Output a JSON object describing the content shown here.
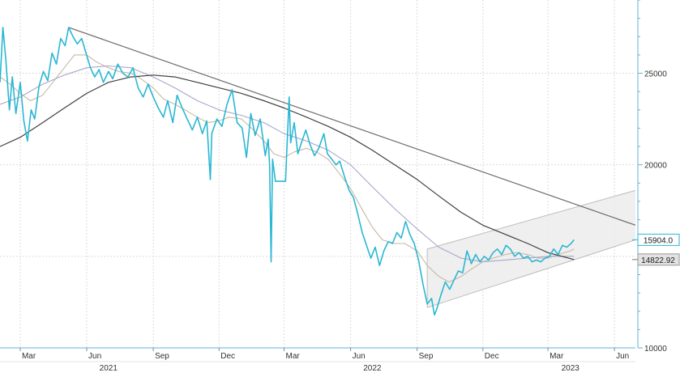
{
  "chart_data": {
    "type": "line",
    "title": "",
    "xlabel": "",
    "ylabel": "",
    "ylim": [
      10000,
      29000
    ],
    "x_range": [
      "2021-02-01",
      "2023-06-30"
    ],
    "grid": true,
    "y_axis_side": "right",
    "y_ticks": [
      {
        "value": 10000,
        "label": "10000"
      },
      {
        "value": 15000,
        "label": ""
      },
      {
        "value": 20000,
        "label": "20000"
      },
      {
        "value": 25000,
        "label": "25000"
      }
    ],
    "x_month_ticks": [
      {
        "date": "2021-03-01",
        "label": "Mar"
      },
      {
        "date": "2021-06-01",
        "label": "Jun"
      },
      {
        "date": "2021-09-01",
        "label": "Sep"
      },
      {
        "date": "2021-12-01",
        "label": "Dec"
      },
      {
        "date": "2022-03-01",
        "label": "Mar"
      },
      {
        "date": "2022-06-01",
        "label": "Jun"
      },
      {
        "date": "2022-09-01",
        "label": "Sep"
      },
      {
        "date": "2022-12-01",
        "label": "Dec"
      },
      {
        "date": "2023-03-01",
        "label": "Mar"
      },
      {
        "date": "2023-06-01",
        "label": "Jun"
      }
    ],
    "x_year_labels": [
      {
        "date": "2021-07-01",
        "label": "2021"
      },
      {
        "date": "2022-07-01",
        "label": "2022"
      },
      {
        "date": "2023-04-01",
        "label": "2023"
      }
    ],
    "last_value_badges": [
      {
        "value": 15904.0,
        "label": "15904.0",
        "style": "outline-blue"
      },
      {
        "value": 14822.92,
        "label": "14822.92",
        "style": "filled-gray"
      }
    ],
    "colors": {
      "price": "#2ab7d3",
      "ma_short": "#c9b8a3",
      "ma_mid": "#a9a7c9",
      "ma_long": "#3f3f3f",
      "trendline": "#6b6b6b",
      "channel_fill": "#ececec",
      "channel_line": "#bdbdbd",
      "grid": "#dcdcdc",
      "axis": "#5cb6d6"
    },
    "series": [
      {
        "role": "price",
        "points": [
          [
            "2021-02-01",
            24500
          ],
          [
            "2021-02-05",
            27500
          ],
          [
            "2021-02-09",
            25800
          ],
          [
            "2021-02-14",
            23000
          ],
          [
            "2021-02-18",
            24800
          ],
          [
            "2021-02-23",
            22800
          ],
          [
            "2021-03-01",
            24500
          ],
          [
            "2021-03-06",
            22400
          ],
          [
            "2021-03-11",
            21300
          ],
          [
            "2021-03-16",
            23000
          ],
          [
            "2021-03-21",
            22500
          ],
          [
            "2021-03-27",
            24300
          ],
          [
            "2021-04-02",
            25100
          ],
          [
            "2021-04-08",
            24600
          ],
          [
            "2021-04-14",
            26100
          ],
          [
            "2021-04-20",
            25500
          ],
          [
            "2021-04-26",
            26900
          ],
          [
            "2021-05-02",
            26500
          ],
          [
            "2021-05-07",
            27500
          ],
          [
            "2021-05-13",
            27000
          ],
          [
            "2021-05-19",
            26600
          ],
          [
            "2021-05-25",
            26900
          ],
          [
            "2021-05-31",
            26100
          ],
          [
            "2021-06-06",
            25300
          ],
          [
            "2021-06-12",
            24800
          ],
          [
            "2021-06-18",
            25200
          ],
          [
            "2021-06-24",
            24500
          ],
          [
            "2021-07-01",
            25100
          ],
          [
            "2021-07-07",
            24700
          ],
          [
            "2021-07-14",
            25500
          ],
          [
            "2021-07-21",
            25000
          ],
          [
            "2021-07-28",
            24800
          ],
          [
            "2021-08-04",
            25300
          ],
          [
            "2021-08-11",
            24200
          ],
          [
            "2021-08-18",
            23700
          ],
          [
            "2021-08-25",
            24400
          ],
          [
            "2021-09-01",
            23700
          ],
          [
            "2021-09-08",
            23100
          ],
          [
            "2021-09-15",
            22600
          ],
          [
            "2021-09-21",
            23500
          ],
          [
            "2021-09-28",
            22300
          ],
          [
            "2021-10-04",
            23800
          ],
          [
            "2021-10-11",
            23100
          ],
          [
            "2021-10-18",
            22500
          ],
          [
            "2021-10-25",
            21900
          ],
          [
            "2021-11-01",
            22600
          ],
          [
            "2021-11-08",
            21700
          ],
          [
            "2021-11-14",
            22400
          ],
          [
            "2021-11-19",
            19200
          ],
          [
            "2021-11-21",
            21700
          ],
          [
            "2021-11-28",
            22500
          ],
          [
            "2021-12-05",
            22100
          ],
          [
            "2021-12-12",
            23300
          ],
          [
            "2021-12-19",
            24100
          ],
          [
            "2021-12-26",
            22300
          ],
          [
            "2022-01-02",
            22000
          ],
          [
            "2022-01-08",
            20400
          ],
          [
            "2022-01-14",
            22800
          ],
          [
            "2022-01-20",
            21600
          ],
          [
            "2022-01-27",
            22500
          ],
          [
            "2022-02-03",
            20500
          ],
          [
            "2022-02-07",
            21400
          ],
          [
            "2022-02-09",
            19900
          ],
          [
            "2022-02-11",
            14700
          ],
          [
            "2022-02-13",
            20300
          ],
          [
            "2022-02-17",
            19100
          ],
          [
            "2022-02-22",
            19100
          ],
          [
            "2022-02-26",
            19100
          ],
          [
            "2022-03-03",
            19100
          ],
          [
            "2022-03-05",
            21000
          ],
          [
            "2022-03-08",
            23700
          ],
          [
            "2022-03-10",
            21200
          ],
          [
            "2022-03-15",
            22300
          ],
          [
            "2022-03-20",
            20600
          ],
          [
            "2022-03-25",
            21200
          ],
          [
            "2022-03-31",
            21900
          ],
          [
            "2022-04-06",
            21100
          ],
          [
            "2022-04-12",
            20500
          ],
          [
            "2022-04-18",
            20900
          ],
          [
            "2022-04-25",
            21700
          ],
          [
            "2022-04-30",
            20600
          ],
          [
            "2022-05-06",
            20300
          ],
          [
            "2022-05-12",
            20000
          ],
          [
            "2022-05-17",
            20200
          ],
          [
            "2022-05-24",
            19300
          ],
          [
            "2022-05-30",
            18600
          ],
          [
            "2022-06-05",
            18200
          ],
          [
            "2022-06-11",
            17300
          ],
          [
            "2022-06-17",
            16300
          ],
          [
            "2022-06-23",
            15600
          ],
          [
            "2022-06-29",
            14900
          ],
          [
            "2022-07-05",
            15500
          ],
          [
            "2022-07-11",
            14500
          ],
          [
            "2022-07-17",
            15300
          ],
          [
            "2022-07-23",
            15800
          ],
          [
            "2022-07-29",
            15700
          ],
          [
            "2022-08-04",
            16300
          ],
          [
            "2022-08-10",
            16000
          ],
          [
            "2022-08-16",
            16900
          ],
          [
            "2022-08-22",
            16200
          ],
          [
            "2022-08-28",
            15700
          ],
          [
            "2022-09-03",
            14800
          ],
          [
            "2022-09-09",
            13500
          ],
          [
            "2022-09-15",
            12400
          ],
          [
            "2022-09-21",
            12700
          ],
          [
            "2022-09-25",
            11800
          ],
          [
            "2022-09-28",
            12100
          ],
          [
            "2022-10-04",
            12900
          ],
          [
            "2022-10-10",
            13600
          ],
          [
            "2022-10-16",
            13200
          ],
          [
            "2022-10-22",
            13700
          ],
          [
            "2022-10-28",
            14200
          ],
          [
            "2022-11-03",
            14100
          ],
          [
            "2022-11-09",
            15300
          ],
          [
            "2022-11-15",
            14600
          ],
          [
            "2022-11-21",
            15100
          ],
          [
            "2022-11-27",
            14700
          ],
          [
            "2022-12-03",
            15000
          ],
          [
            "2022-12-09",
            14800
          ],
          [
            "2022-12-15",
            15200
          ],
          [
            "2022-12-21",
            15400
          ],
          [
            "2022-12-27",
            15100
          ],
          [
            "2023-01-02",
            15600
          ],
          [
            "2023-01-08",
            15400
          ],
          [
            "2023-01-14",
            15000
          ],
          [
            "2023-01-20",
            15200
          ],
          [
            "2023-01-26",
            14900
          ],
          [
            "2023-02-01",
            15000
          ],
          [
            "2023-02-07",
            14700
          ],
          [
            "2023-02-13",
            14800
          ],
          [
            "2023-02-19",
            14700
          ],
          [
            "2023-02-25",
            14900
          ],
          [
            "2023-03-03",
            15000
          ],
          [
            "2023-03-09",
            15400
          ],
          [
            "2023-03-15",
            15100
          ],
          [
            "2023-03-21",
            15600
          ],
          [
            "2023-03-27",
            15500
          ],
          [
            "2023-04-02",
            15700
          ],
          [
            "2023-04-06",
            15904
          ]
        ]
      },
      {
        "role": "ma_short",
        "points": [
          [
            "2021-02-01",
            24800
          ],
          [
            "2021-02-15",
            24400
          ],
          [
            "2021-03-01",
            23900
          ],
          [
            "2021-03-15",
            23500
          ],
          [
            "2021-04-01",
            23800
          ],
          [
            "2021-04-15",
            24500
          ],
          [
            "2021-05-01",
            25300
          ],
          [
            "2021-05-15",
            26000
          ],
          [
            "2021-06-01",
            26000
          ],
          [
            "2021-06-15",
            25600
          ],
          [
            "2021-07-01",
            25300
          ],
          [
            "2021-07-15",
            25100
          ],
          [
            "2021-08-01",
            25000
          ],
          [
            "2021-08-15",
            24700
          ],
          [
            "2021-09-01",
            24200
          ],
          [
            "2021-09-15",
            23600
          ],
          [
            "2021-10-01",
            23300
          ],
          [
            "2021-10-15",
            23000
          ],
          [
            "2021-11-01",
            22600
          ],
          [
            "2021-11-15",
            22300
          ],
          [
            "2021-12-01",
            22400
          ],
          [
            "2021-12-15",
            22600
          ],
          [
            "2022-01-01",
            22500
          ],
          [
            "2022-01-15",
            22000
          ],
          [
            "2022-02-01",
            21300
          ],
          [
            "2022-02-15",
            20600
          ],
          [
            "2022-03-01",
            20400
          ],
          [
            "2022-03-15",
            20700
          ],
          [
            "2022-04-01",
            20900
          ],
          [
            "2022-04-15",
            20700
          ],
          [
            "2022-05-01",
            20300
          ],
          [
            "2022-05-15",
            19600
          ],
          [
            "2022-06-01",
            18700
          ],
          [
            "2022-06-15",
            17700
          ],
          [
            "2022-07-01",
            16600
          ],
          [
            "2022-07-15",
            15900
          ],
          [
            "2022-08-01",
            15700
          ],
          [
            "2022-08-15",
            15700
          ],
          [
            "2022-09-01",
            15300
          ],
          [
            "2022-09-15",
            14500
          ],
          [
            "2022-10-01",
            13900
          ],
          [
            "2022-10-15",
            13600
          ],
          [
            "2022-11-01",
            13900
          ],
          [
            "2022-11-15",
            14300
          ],
          [
            "2022-12-01",
            14700
          ],
          [
            "2022-12-15",
            14900
          ],
          [
            "2023-01-01",
            15100
          ],
          [
            "2023-01-15",
            15200
          ],
          [
            "2023-02-01",
            15100
          ],
          [
            "2023-02-15",
            14900
          ],
          [
            "2023-03-01",
            14900
          ],
          [
            "2023-03-15",
            15100
          ],
          [
            "2023-04-01",
            15300
          ],
          [
            "2023-04-06",
            15400
          ]
        ]
      },
      {
        "role": "ma_mid",
        "points": [
          [
            "2021-02-01",
            23300
          ],
          [
            "2021-03-01",
            23700
          ],
          [
            "2021-04-01",
            24400
          ],
          [
            "2021-05-01",
            24900
          ],
          [
            "2021-06-01",
            25300
          ],
          [
            "2021-07-01",
            25400
          ],
          [
            "2021-08-01",
            25300
          ],
          [
            "2021-09-01",
            24800
          ],
          [
            "2021-10-01",
            24200
          ],
          [
            "2021-11-01",
            23500
          ],
          [
            "2021-12-01",
            23000
          ],
          [
            "2022-01-01",
            22700
          ],
          [
            "2022-02-01",
            22300
          ],
          [
            "2022-03-01",
            21700
          ],
          [
            "2022-04-01",
            21300
          ],
          [
            "2022-05-01",
            20800
          ],
          [
            "2022-06-01",
            20000
          ],
          [
            "2022-07-01",
            18800
          ],
          [
            "2022-08-01",
            17600
          ],
          [
            "2022-09-01",
            16500
          ],
          [
            "2022-10-01",
            15500
          ],
          [
            "2022-11-01",
            14900
          ],
          [
            "2022-12-01",
            14700
          ],
          [
            "2023-01-01",
            14800
          ],
          [
            "2023-02-01",
            14900
          ],
          [
            "2023-03-01",
            15000
          ],
          [
            "2023-04-06",
            15000
          ]
        ]
      },
      {
        "role": "ma_long",
        "points": [
          [
            "2021-02-01",
            21000
          ],
          [
            "2021-03-01",
            21500
          ],
          [
            "2021-04-01",
            22300
          ],
          [
            "2021-05-01",
            23100
          ],
          [
            "2021-06-01",
            23900
          ],
          [
            "2021-07-01",
            24500
          ],
          [
            "2021-08-01",
            24800
          ],
          [
            "2021-09-01",
            24900
          ],
          [
            "2021-10-01",
            24800
          ],
          [
            "2021-11-01",
            24500
          ],
          [
            "2021-12-01",
            24200
          ],
          [
            "2022-01-01",
            23900
          ],
          [
            "2022-02-01",
            23500
          ],
          [
            "2022-03-01",
            23100
          ],
          [
            "2022-04-01",
            22600
          ],
          [
            "2022-05-01",
            22100
          ],
          [
            "2022-06-01",
            21500
          ],
          [
            "2022-07-01",
            20800
          ],
          [
            "2022-08-01",
            20000
          ],
          [
            "2022-09-01",
            19200
          ],
          [
            "2022-10-01",
            18300
          ],
          [
            "2022-11-01",
            17400
          ],
          [
            "2022-12-01",
            16700
          ],
          [
            "2023-01-01",
            16200
          ],
          [
            "2023-02-01",
            15700
          ],
          [
            "2023-03-01",
            15200
          ],
          [
            "2023-04-06",
            14822.92
          ]
        ]
      }
    ],
    "trendline": [
      [
        "2021-05-07",
        27500
      ],
      [
        "2023-06-30",
        16700
      ]
    ],
    "channel": {
      "upper": [
        [
          "2022-09-15",
          15400
        ],
        [
          "2023-06-30",
          18600
        ]
      ],
      "lower": [
        [
          "2022-09-15",
          12200
        ],
        [
          "2023-06-30",
          15900
        ]
      ]
    }
  }
}
